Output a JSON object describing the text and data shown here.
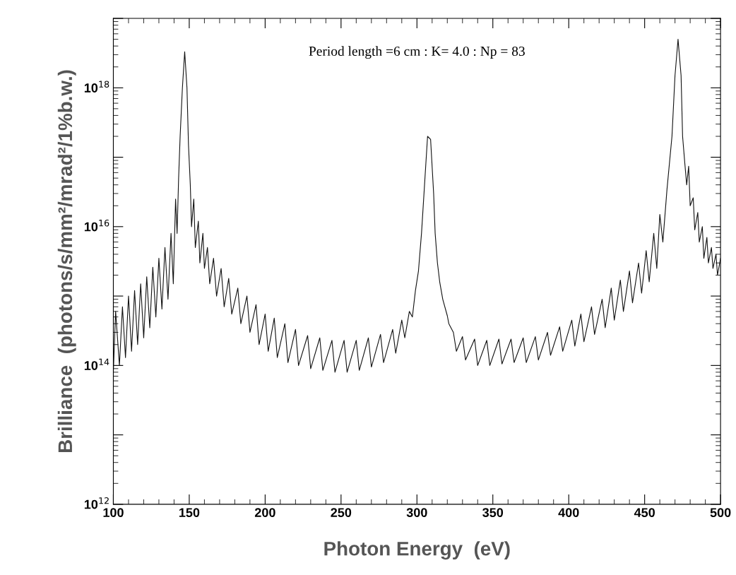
{
  "chart_data": {
    "type": "line",
    "xlabel": "Photon Energy  (eV)",
    "ylabel": "Brilliance  (photons/s/mm²/mrad²/1%b.w.)",
    "annotations": [
      "Period length =6 cm : K= 4.0 : Np = 83"
    ],
    "log": "y",
    "grid": false,
    "marker": "none",
    "line_style": "solid",
    "xlim": [
      100,
      500
    ],
    "xticks": [
      100,
      150,
      200,
      250,
      300,
      350,
      400,
      450,
      500
    ],
    "ylim": [
      1000000000000.0,
      1e+19
    ],
    "yticks": [
      {
        "value": 1000000000000.0,
        "label": "10$^{12}$"
      },
      {
        "value": 10000000000000.0,
        "label": null
      },
      {
        "value": 100000000000000.0,
        "label": "10$^{14}$"
      },
      {
        "value": 1000000000000000.0,
        "label": null
      },
      {
        "value": 1e+16,
        "label": "10$^{16}$"
      },
      {
        "value": 1e+17,
        "label": null
      },
      {
        "value": 1e+18,
        "label": "10$^{18}$"
      },
      {
        "value": 1e+19,
        "label": null
      }
    ],
    "series": [
      {
        "color": "#111111",
        "x": [
          100,
          101.5,
          104,
          106,
          108,
          110,
          112,
          114,
          116,
          118,
          120,
          122,
          124,
          126,
          128,
          130,
          132,
          134,
          136,
          138,
          139.5,
          141,
          142,
          143,
          144,
          145.5,
          147,
          148.5,
          149.5,
          150.7,
          151.5,
          153,
          154,
          156,
          157,
          159,
          160,
          162,
          163.5,
          166,
          168,
          171,
          173,
          176,
          178,
          182,
          184,
          188,
          190,
          194,
          196,
          200,
          202,
          206,
          208,
          213,
          215,
          220,
          222,
          228,
          230,
          236,
          238,
          244,
          246,
          252,
          254,
          260,
          262,
          268,
          270,
          276,
          278,
          284,
          286,
          290,
          292,
          295,
          297,
          299,
          301,
          303,
          305,
          307,
          309,
          311,
          312,
          313.5,
          315,
          317,
          320,
          321,
          324,
          326,
          330,
          332,
          338,
          340,
          346,
          348,
          354,
          356,
          362,
          364,
          370,
          372,
          378,
          380,
          386,
          388,
          394,
          396,
          402,
          404,
          408,
          410,
          415,
          417,
          422,
          424,
          428,
          430,
          434,
          436,
          440,
          442,
          446,
          448,
          451,
          453,
          456,
          458,
          460,
          462,
          464.7,
          468,
          470,
          472,
          474,
          475,
          476.5,
          477.7,
          479,
          480,
          482,
          483,
          485,
          486,
          488,
          489,
          491,
          492,
          494,
          495,
          497,
          498,
          500
        ],
        "values": [
          80000000000000.0,
          600000000000000.0,
          100000000000000.0,
          700000000000000.0,
          130000000000000.0,
          1000000000000000.0,
          160000000000000.0,
          1200000000000000.0,
          200000000000000.0,
          1500000000000000.0,
          250000000000000.0,
          1900000000000000.0,
          350000000000000.0,
          2600000000000000.0,
          500000000000000.0,
          3500000000000000.0,
          650000000000000.0,
          5000000000000000.0,
          900000000000000.0,
          8000000000000000.0,
          1500000000000000.0,
          2.5e+16,
          8000000000000000.0,
          5e+16,
          2e+17,
          1e+18,
          3.3e+18,
          1e+18,
          1.5e+17,
          4e+16,
          1e+16,
          2.5e+16,
          5000000000000000.0,
          1.2e+16,
          3000000000000000.0,
          8000000000000000.0,
          2500000000000000.0,
          5000000000000000.0,
          1500000000000000.0,
          3500000000000000.0,
          1000000000000000.0,
          2500000000000000.0,
          700000000000000.0,
          1800000000000000.0,
          550000000000000.0,
          1300000000000000.0,
          400000000000000.0,
          1000000000000000.0,
          300000000000000.0,
          750000000000000.0,
          200000000000000.0,
          550000000000000.0,
          160000000000000.0,
          480000000000000.0,
          130000000000000.0,
          400000000000000.0,
          110000000000000.0,
          330000000000000.0,
          100000000000000.0,
          270000000000000.0,
          90000000000000.0,
          250000000000000.0,
          85000000000000.0,
          230000000000000.0,
          80000000000000.0,
          230000000000000.0,
          80000000000000.0,
          230000000000000.0,
          85000000000000.0,
          250000000000000.0,
          95000000000000.0,
          280000000000000.0,
          110000000000000.0,
          330000000000000.0,
          150000000000000.0,
          450000000000000.0,
          250000000000000.0,
          600000000000000.0,
          500000000000000.0,
          1200000000000000.0,
          2300000000000000.0,
          8000000000000000.0,
          4e+16,
          2e+17,
          1.8e+17,
          3e+16,
          8000000000000000.0,
          3000000000000000.0,
          1600000000000000.0,
          900000000000000.0,
          520000000000000.0,
          400000000000000.0,
          300000000000000.0,
          160000000000000.0,
          260000000000000.0,
          120000000000000.0,
          240000000000000.0,
          100000000000000.0,
          230000000000000.0,
          100000000000000.0,
          240000000000000.0,
          105000000000000.0,
          240000000000000.0,
          110000000000000.0,
          250000000000000.0,
          110000000000000.0,
          260000000000000.0,
          120000000000000.0,
          300000000000000.0,
          140000000000000.0,
          360000000000000.0,
          160000000000000.0,
          450000000000000.0,
          190000000000000.0,
          550000000000000.0,
          220000000000000.0,
          700000000000000.0,
          280000000000000.0,
          900000000000000.0,
          350000000000000.0,
          1300000000000000.0,
          450000000000000.0,
          1700000000000000.0,
          600000000000000.0,
          2300000000000000.0,
          800000000000000.0,
          3000000000000000.0,
          1100000000000000.0,
          4500000000000000.0,
          1600000000000000.0,
          8000000000000000.0,
          2500000000000000.0,
          1.5e+16,
          6000000000000000.0,
          3.4e+16,
          2e+17,
          1.5e+18,
          5e+18,
          1.5e+18,
          2e+17,
          8e+16,
          4e+16,
          7.4e+16,
          2e+16,
          2.6e+16,
          9000000000000000.0,
          1.6e+16,
          6000000000000000.0,
          1e+16,
          3500000000000000.0,
          7000000000000000.0,
          3000000000000000.0,
          5000000000000000.0,
          2500000000000000.0,
          4000000000000000.0,
          2000000000000000.0,
          3500000000000000.0
        ]
      }
    ]
  }
}
